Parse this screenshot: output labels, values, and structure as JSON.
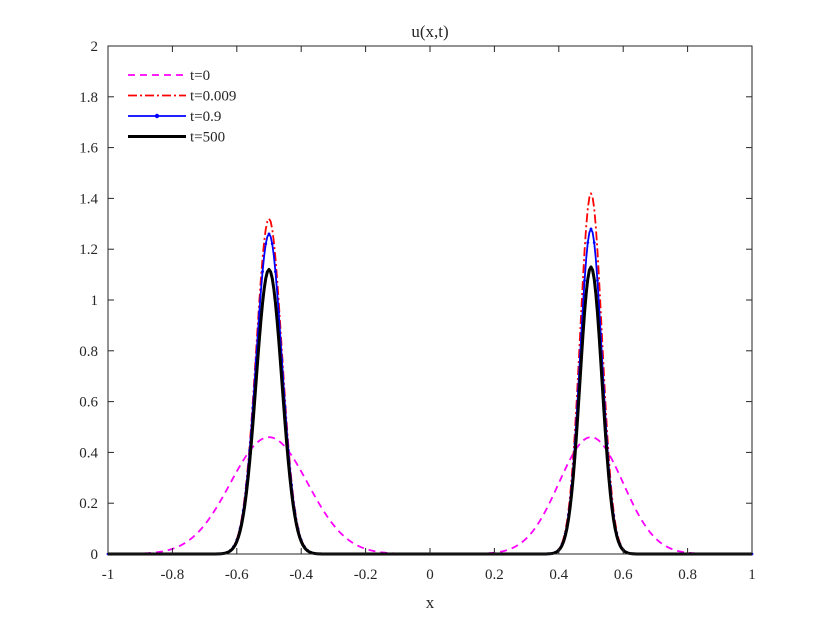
{
  "chart_data": {
    "type": "line",
    "title": "u(x,t)",
    "xlabel": "x",
    "ylabel": "",
    "xlim": [
      -1,
      1
    ],
    "ylim": [
      0,
      2
    ],
    "grid": false,
    "legend_position": "top-left",
    "x_ticks": [
      -1,
      -0.8,
      -0.6,
      -0.4,
      -0.2,
      0,
      0.2,
      0.4,
      0.6,
      0.8,
      1
    ],
    "x_tick_labels": [
      "-1",
      "-0.8",
      "-0.6",
      "-0.4",
      "-0.2",
      "0",
      "0.2",
      "0.4",
      "0.6",
      "0.8",
      "1"
    ],
    "y_ticks": [
      0,
      0.2,
      0.4,
      0.6,
      0.8,
      1,
      1.2,
      1.4,
      1.6,
      1.8,
      2
    ],
    "y_tick_labels": [
      "0",
      "0.2",
      "0.4",
      "0.6",
      "0.8",
      "1",
      "1.2",
      "1.4",
      "1.6",
      "1.8",
      "2"
    ],
    "series": [
      {
        "name": "t=0",
        "color": "#ff00ff",
        "dash": "dashed",
        "marker": "none",
        "peaks": [
          {
            "center": -0.5,
            "amplitude": 0.46,
            "width": 0.12
          },
          {
            "center": 0.5,
            "amplitude": 0.46,
            "width": 0.1
          }
        ]
      },
      {
        "name": "t=0.009",
        "color": "#ff0000",
        "dash": "dashdot",
        "marker": "none",
        "peaks": [
          {
            "center": -0.5,
            "amplitude": 1.32,
            "width": 0.04
          },
          {
            "center": 0.5,
            "amplitude": 1.42,
            "width": 0.034
          }
        ]
      },
      {
        "name": "t=0.9",
        "color": "#0000ff",
        "dash": "solid",
        "marker": "dot",
        "peaks": [
          {
            "center": -0.5,
            "amplitude": 1.26,
            "width": 0.04
          },
          {
            "center": 0.5,
            "amplitude": 1.28,
            "width": 0.034
          }
        ]
      },
      {
        "name": "t=500",
        "color": "#000000",
        "dash": "solid",
        "marker": "none",
        "peaks": [
          {
            "center": -0.5,
            "amplitude": 1.12,
            "width": 0.04
          },
          {
            "center": 0.5,
            "amplitude": 1.13,
            "width": 0.034
          }
        ]
      }
    ]
  }
}
